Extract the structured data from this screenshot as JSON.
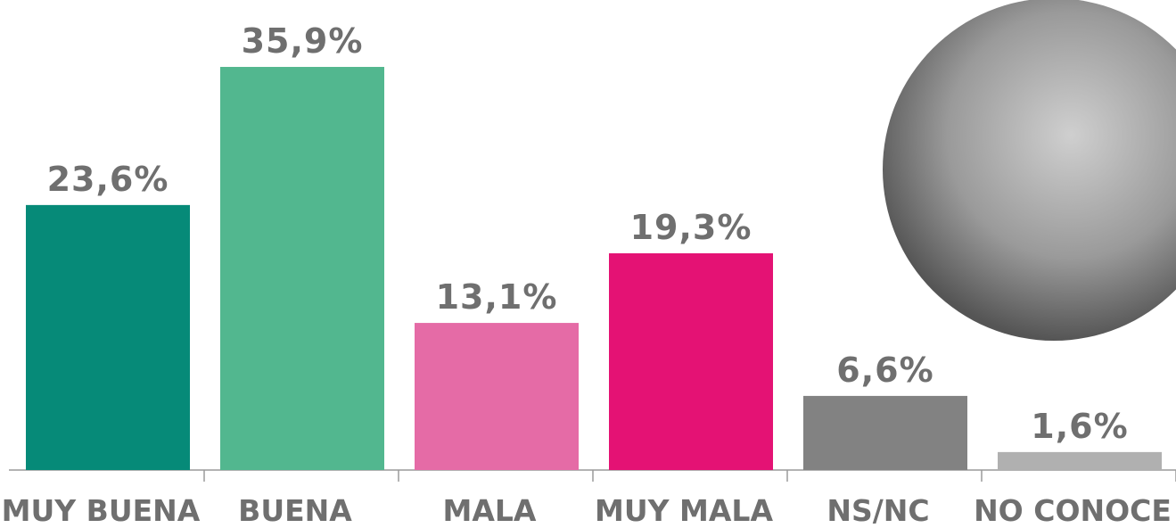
{
  "chart_data": {
    "type": "bar",
    "categories": [
      "MUY BUENA",
      "BUENA",
      "MALA",
      "MUY MALA",
      "NS/NC",
      "NO CONOCE"
    ],
    "values": [
      23.6,
      35.9,
      13.1,
      19.3,
      6.6,
      1.6
    ],
    "value_labels": [
      "23,6%",
      "35,9%",
      "13,1%",
      "19,3%",
      "6,6%",
      "1,6%"
    ],
    "colors": [
      "#068a78",
      "#52b78f",
      "#e56ba6",
      "#e41274",
      "#828282",
      "#b0b0b0"
    ]
  }
}
